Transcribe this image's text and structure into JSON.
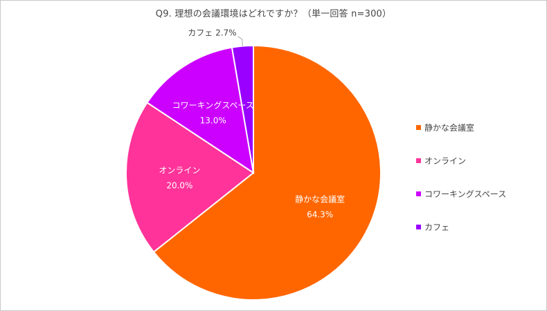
{
  "title": "Q9. 理想の会議環境はどれですか？（単一回答 n=300）",
  "chart_data": {
    "type": "pie",
    "title": "Q9. 理想の会議環境はどれですか？（単一回答 n=300）",
    "slices": [
      {
        "label": "静かな会議室",
        "value": 64.3,
        "display": "64.3%",
        "color": "#ff6600"
      },
      {
        "label": "オンライン",
        "value": 20.0,
        "display": "20.0%",
        "color": "#ff3399"
      },
      {
        "label": "コワーキングスペース",
        "value": 13.0,
        "display": "13.0%",
        "color": "#cc00ff"
      },
      {
        "label": "カフェ",
        "value": 2.7,
        "display": "2.7%",
        "color": "#9900ff"
      }
    ],
    "legend": {
      "position": "right"
    },
    "start_angle": "12 o'clock",
    "direction": "clockwise"
  }
}
